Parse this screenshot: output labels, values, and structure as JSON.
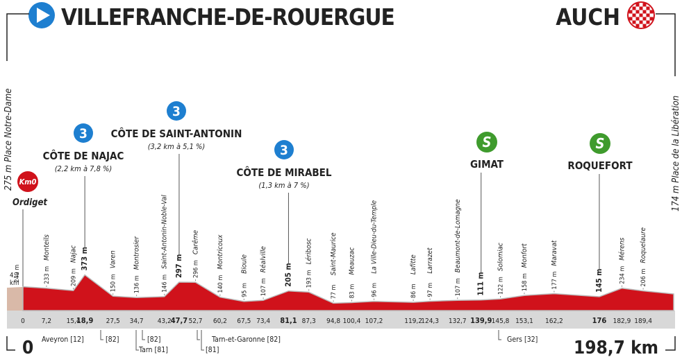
{
  "header": {
    "start": "VILLEFRANCHE-DE-ROUERGUE",
    "finish": "AUCH",
    "start_side": "275 m  Place Notre-Dame",
    "finish_side": "174 m  Place de la Libération"
  },
  "start_point": {
    "badge": "Km0",
    "name": "Ordiget",
    "neutral_km": "4,7",
    "neutral_unit": "km"
  },
  "points": [
    {
      "km": "0",
      "alt": "249 m"
    },
    {
      "km": "7,2",
      "alt": "233 m",
      "name": "Monteils"
    },
    {
      "km": "15,4",
      "alt": "209 m",
      "name": "Najac"
    },
    {
      "km": "18,9",
      "alt": "373 m",
      "climb": {
        "category": "3",
        "name": "CÔTE DE NAJAC",
        "detail": "(2,2 km à 7,8 %)"
      }
    },
    {
      "km": "27,5",
      "alt": "150 m",
      "name": "Varen"
    },
    {
      "km": "34,7",
      "alt": "136 m",
      "name": "Montrosier"
    },
    {
      "km": "43,2",
      "alt": "146 m",
      "name": "Saint-Antonin-Noble-Val"
    },
    {
      "km": "47,7",
      "alt": "297 m",
      "climb": {
        "category": "3",
        "name": "CÔTE DE SAINT-ANTONIN",
        "detail": "(3,2 km à 5,1 %)"
      }
    },
    {
      "km": "52,7",
      "alt": "296 m",
      "name": "Carême"
    },
    {
      "km": "60,2",
      "alt": "140 m",
      "name": "Montricoux"
    },
    {
      "km": "67,5",
      "alt": "95 m",
      "name": "Bioule"
    },
    {
      "km": "73,4",
      "alt": "107 m",
      "name": "Réalville"
    },
    {
      "km": "81,1",
      "alt": "205 m",
      "climb": {
        "category": "3",
        "name": "CÔTE DE MIRABEL",
        "detail": "(1,3 km à 7 %)"
      }
    },
    {
      "km": "87,3",
      "alt": "193 m",
      "name": "Léribosc"
    },
    {
      "km": "94,8",
      "alt": "77 m",
      "name": "Saint-Maurice"
    },
    {
      "km": "100,4",
      "alt": "83 m",
      "name": "Meauzac"
    },
    {
      "km": "107,2",
      "alt": "96 m",
      "name": "La Ville-Dieu-du-Temple"
    },
    {
      "km": "119,2",
      "alt": "86 m",
      "name": "Lafitte"
    },
    {
      "km": "124,3",
      "alt": "97 m",
      "name": "Larrazet"
    },
    {
      "km": "132,7",
      "alt": "107 m",
      "name": "Beaumont-de-Lomagne"
    },
    {
      "km": "139,9",
      "alt": "111 m",
      "sprint": {
        "badge": "S",
        "name": "GIMAT"
      }
    },
    {
      "km": "145,8",
      "alt": "122 m",
      "name": "Solomiac"
    },
    {
      "km": "153,1",
      "alt": "158 m",
      "name": "Monfort"
    },
    {
      "km": "162,2",
      "alt": "177 m",
      "name": "Maravat"
    },
    {
      "km": "176",
      "alt": "145 m",
      "sprint": {
        "badge": "S",
        "name": "ROQUEFORT"
      }
    },
    {
      "km": "182,9",
      "alt": "234 m",
      "name": "Mérens"
    },
    {
      "km": "189,4",
      "alt": "206 m",
      "name": "Roquelaure"
    },
    {
      "km": "198,7",
      "alt": "174 m"
    }
  ],
  "footer": {
    "start_km": "0",
    "total": "198,7 km"
  },
  "departments": [
    "Aveyron [12]",
    "[82]",
    "Tarn [81]",
    "[82]",
    "Tarn-et-Garonne [82]",
    "[81]",
    "Gers [32]"
  ]
}
